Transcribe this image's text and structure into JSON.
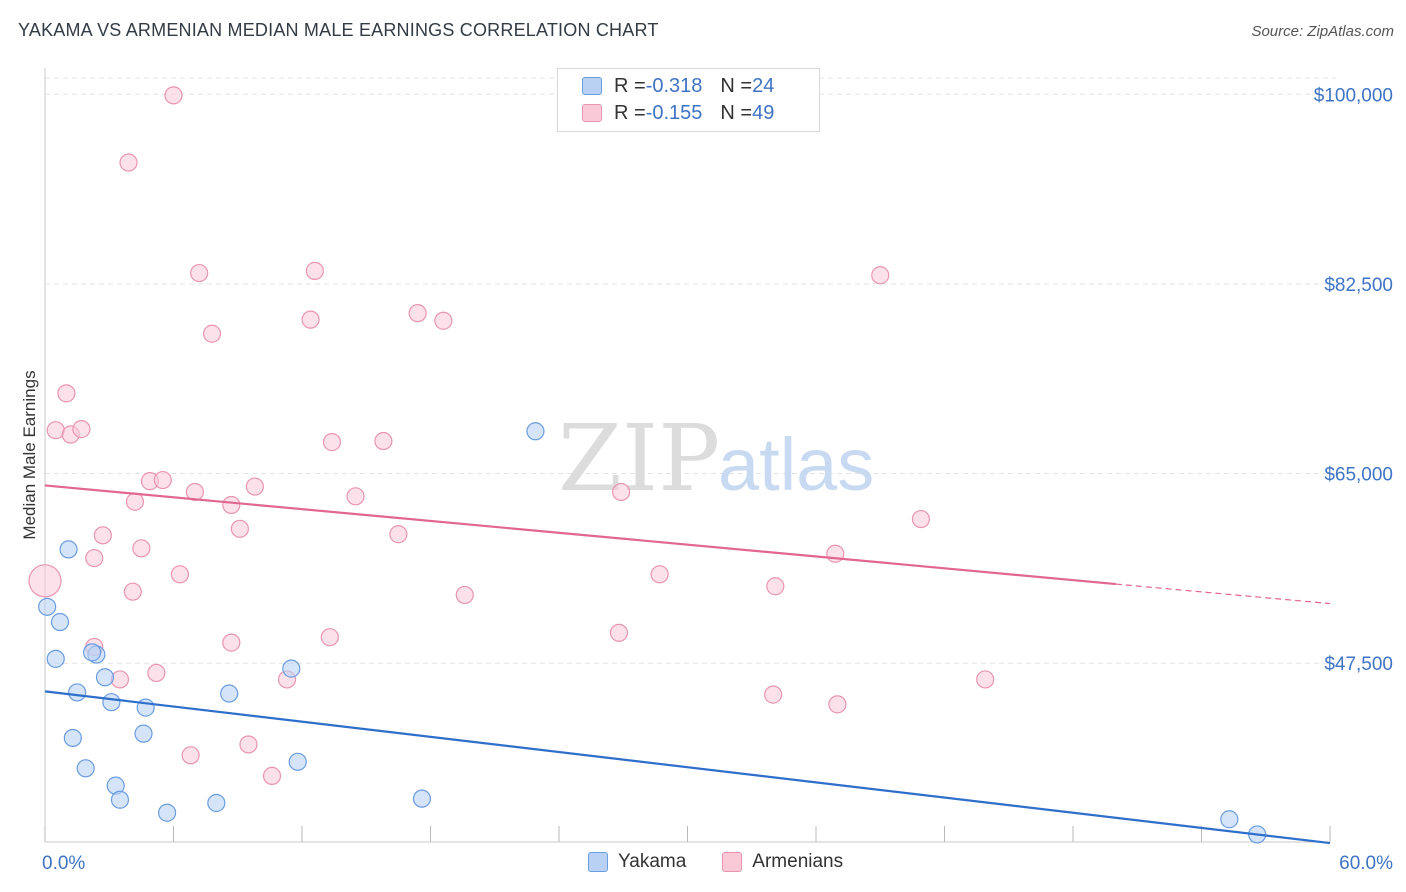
{
  "header": {
    "title": "YAKAMA VS ARMENIAN MEDIAN MALE EARNINGS CORRELATION CHART",
    "source": "Source: ZipAtlas.com"
  },
  "watermark": {
    "zip": "ZIP",
    "atlas": "atlas"
  },
  "legend": {
    "rows": [
      {
        "r_label": "R = ",
        "r_value": "-0.318",
        "n_label": "N = ",
        "n_value": "24"
      },
      {
        "r_label": "R = ",
        "r_value": "-0.155",
        "n_label": "N = ",
        "n_value": "49"
      }
    ]
  },
  "bottom_legend": {
    "items": [
      "Yakama",
      "Armenians"
    ]
  },
  "colors": {
    "yakama_fill": "#b9d2f3",
    "yakama_stroke": "#6a9ddf",
    "yakama_line": "#2f6fcc",
    "armenian_fill": "#f9c9d8",
    "armenian_stroke": "#e995b1",
    "armenian_line": "#e2678f",
    "tick_text": "#3f74c4",
    "grid": "#e3e3e3"
  },
  "chart_data": {
    "type": "scatter",
    "title": "YAKAMA VS ARMENIAN MEDIAN MALE EARNINGS CORRELATION CHART",
    "xlabel": "",
    "ylabel": "Median Male Earnings",
    "xlim": [
      0,
      60
    ],
    "ylim": [
      31000,
      101500
    ],
    "x_tick_labels": [
      "0.0%",
      "60.0%"
    ],
    "y_ticks": [
      {
        "value": 100000,
        "label": "$100,000"
      },
      {
        "value": 82500,
        "label": "$82,500"
      },
      {
        "value": 65000,
        "label": "$65,000"
      },
      {
        "value": 47500,
        "label": "$47,500"
      }
    ],
    "grid": true,
    "legend_position": "top-center",
    "series": [
      {
        "name": "Yakama",
        "r": -0.318,
        "n": 24,
        "trend": {
          "x": [
            0,
            60
          ],
          "y": [
            44900,
            30900
          ]
        },
        "points": [
          [
            0.1,
            52700
          ],
          [
            0.7,
            51300
          ],
          [
            1.1,
            58000
          ],
          [
            0.5,
            47900
          ],
          [
            2.4,
            48300
          ],
          [
            1.5,
            44800
          ],
          [
            2.8,
            46200
          ],
          [
            3.1,
            43900
          ],
          [
            4.7,
            43400
          ],
          [
            4.6,
            41000
          ],
          [
            1.3,
            40600
          ],
          [
            1.9,
            37800
          ],
          [
            3.3,
            36200
          ],
          [
            3.5,
            34900
          ],
          [
            5.7,
            33700
          ],
          [
            8.0,
            34600
          ],
          [
            8.6,
            44700
          ],
          [
            11.5,
            47000
          ],
          [
            11.8,
            38400
          ],
          [
            17.6,
            35000
          ],
          [
            22.9,
            68900
          ],
          [
            55.3,
            33100
          ],
          [
            56.6,
            31700
          ],
          [
            2.2,
            48500
          ]
        ]
      },
      {
        "name": "Armenians",
        "r": -0.155,
        "n": 49,
        "trend": {
          "x": [
            0,
            50
          ],
          "y": [
            63900,
            54800
          ]
        },
        "trend_dashed": {
          "x": [
            50,
            60
          ],
          "y": [
            54800,
            53000
          ]
        },
        "points": [
          [
            6.0,
            99900
          ],
          [
            3.9,
            93700
          ],
          [
            7.2,
            83500
          ],
          [
            12.6,
            83700
          ],
          [
            7.8,
            77900
          ],
          [
            12.4,
            79200
          ],
          [
            17.4,
            79800
          ],
          [
            18.6,
            79100
          ],
          [
            39.0,
            83300
          ],
          [
            1.0,
            72400
          ],
          [
            0.5,
            69000
          ],
          [
            1.2,
            68600
          ],
          [
            1.7,
            69100
          ],
          [
            13.4,
            67900
          ],
          [
            15.8,
            68000
          ],
          [
            4.9,
            64300
          ],
          [
            5.5,
            64400
          ],
          [
            7.0,
            63300
          ],
          [
            9.8,
            63800
          ],
          [
            14.5,
            62900
          ],
          [
            4.2,
            62400
          ],
          [
            8.7,
            62100
          ],
          [
            9.1,
            59900
          ],
          [
            16.5,
            59400
          ],
          [
            2.7,
            59300
          ],
          [
            4.5,
            58100
          ],
          [
            2.3,
            57200
          ],
          [
            6.3,
            55700
          ],
          [
            26.9,
            63300
          ],
          [
            28.7,
            55700
          ],
          [
            36.9,
            57600
          ],
          [
            40.9,
            60800
          ],
          [
            0.0,
            55100
          ],
          [
            19.6,
            53800
          ],
          [
            34.1,
            54600
          ],
          [
            2.3,
            49000
          ],
          [
            8.7,
            49400
          ],
          [
            13.3,
            49900
          ],
          [
            26.8,
            50300
          ],
          [
            3.5,
            46000
          ],
          [
            5.2,
            46600
          ],
          [
            11.3,
            46000
          ],
          [
            34.0,
            44600
          ],
          [
            37.0,
            43700
          ],
          [
            43.9,
            46000
          ],
          [
            6.8,
            39000
          ],
          [
            9.5,
            40000
          ],
          [
            10.6,
            37100
          ],
          [
            4.1,
            54100
          ]
        ]
      }
    ]
  }
}
